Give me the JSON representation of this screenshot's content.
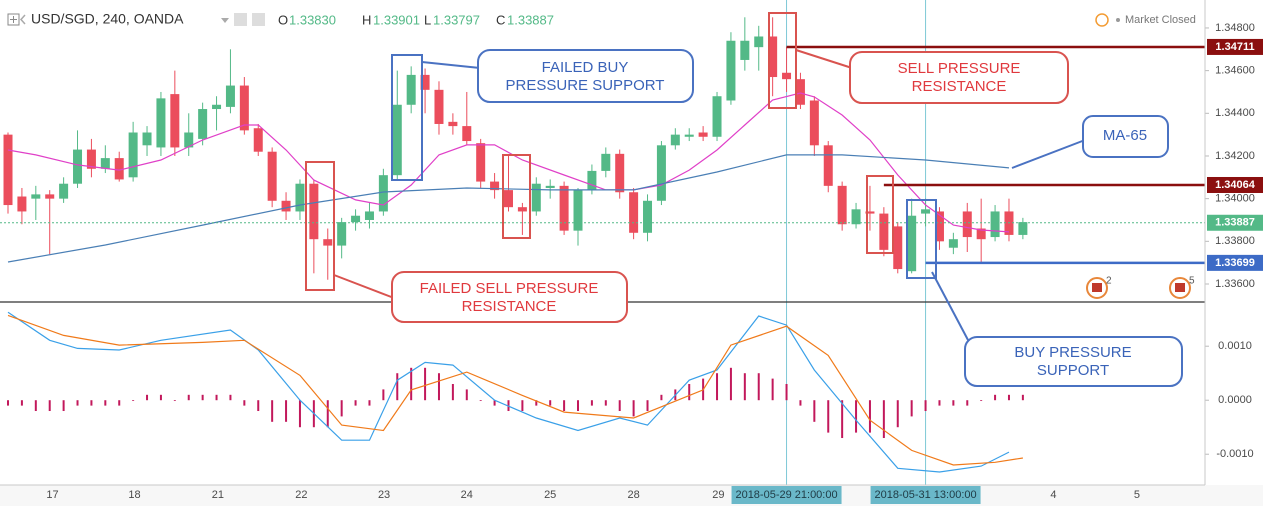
{
  "header": {
    "symbol": "USD/SGD, 240, OANDA",
    "ohlc": [
      [
        "O",
        "1.33830"
      ],
      [
        "H",
        "1.33901"
      ],
      [
        "L",
        "1.33797"
      ],
      [
        "C",
        "1.33887"
      ]
    ],
    "status": "Market Closed"
  },
  "annotations": [
    [
      "FAILED BUY",
      "PRESSURE SUPPORT"
    ],
    [
      "SELL PRESSURE",
      "RESISTANCE"
    ],
    [
      "MA-65"
    ],
    [
      "FAILED SELL PRESSURE",
      "RESISTANCE"
    ],
    [
      "BUY PRESSURE",
      "SUPPORT"
    ]
  ],
  "chart_data": [
    {
      "type": "candlestick",
      "up_color": "#53b987",
      "down_color": "#eb4d5c",
      "candles": {
        "open": [
          1.343,
          1.3401,
          1.34,
          1.3402,
          1.34,
          1.3407,
          1.3423,
          1.3414,
          1.3419,
          1.341,
          1.3425,
          1.3424,
          1.3449,
          1.3424,
          1.3428,
          1.3442,
          1.3443,
          1.3453,
          1.3433,
          1.3422,
          1.3399,
          1.3394,
          1.3407,
          1.3381,
          1.3378,
          1.3389,
          1.339,
          1.3394,
          1.3411,
          1.3444,
          1.3458,
          1.3451,
          1.3436,
          1.3434,
          1.3426,
          1.3408,
          1.3404,
          1.3396,
          1.3394,
          1.3405,
          1.3406,
          1.3385,
          1.3404,
          1.3413,
          1.3421,
          1.3403,
          1.3384,
          1.3399,
          1.3425,
          1.3429,
          1.3431,
          1.3429,
          1.3446,
          1.3465,
          1.3471,
          1.3476,
          1.3459,
          1.3456,
          1.3446,
          1.3425,
          1.3406,
          1.3388,
          1.3394,
          1.3393,
          1.3387,
          1.3366,
          1.3393,
          1.3394,
          1.3377,
          1.3394,
          1.3386,
          1.3382,
          1.3394,
          1.3383
        ],
        "high": [
          1.3431,
          1.3405,
          1.3406,
          1.3404,
          1.341,
          1.3432,
          1.3428,
          1.3425,
          1.3422,
          1.3436,
          1.3434,
          1.345,
          1.346,
          1.344,
          1.3445,
          1.3448,
          1.347,
          1.3457,
          1.3435,
          1.3424,
          1.3403,
          1.3409,
          1.3409,
          1.3386,
          1.3391,
          1.3395,
          1.3398,
          1.3414,
          1.346,
          1.3462,
          1.3461,
          1.3455,
          1.344,
          1.345,
          1.3428,
          1.3412,
          1.342,
          1.3398,
          1.341,
          1.3409,
          1.3408,
          1.3405,
          1.3416,
          1.3424,
          1.3423,
          1.3405,
          1.3402,
          1.3427,
          1.3433,
          1.3433,
          1.3434,
          1.345,
          1.3478,
          1.3485,
          1.3481,
          1.3485,
          1.3471,
          1.3459,
          1.3448,
          1.3427,
          1.3408,
          1.3398,
          1.3406,
          1.3396,
          1.3389,
          1.34,
          1.34,
          1.3396,
          1.3384,
          1.3398,
          1.34,
          1.3397,
          1.34,
          1.3391
        ],
        "low": [
          1.3393,
          1.3388,
          1.339,
          1.3374,
          1.3398,
          1.3405,
          1.341,
          1.3412,
          1.3408,
          1.3408,
          1.342,
          1.342,
          1.342,
          1.342,
          1.3425,
          1.3432,
          1.344,
          1.343,
          1.342,
          1.3396,
          1.339,
          1.339,
          1.3365,
          1.3362,
          1.3372,
          1.3385,
          1.3386,
          1.3392,
          1.3409,
          1.344,
          1.344,
          1.343,
          1.343,
          1.3425,
          1.3405,
          1.34,
          1.3394,
          1.3383,
          1.3392,
          1.34,
          1.3383,
          1.3378,
          1.3402,
          1.341,
          1.34,
          1.3381,
          1.338,
          1.3397,
          1.3423,
          1.3427,
          1.3427,
          1.3427,
          1.3444,
          1.346,
          1.346,
          1.3448,
          1.345,
          1.3442,
          1.342,
          1.3403,
          1.3385,
          1.3386,
          1.3385,
          1.3373,
          1.3365,
          1.3365,
          1.3387,
          1.3376,
          1.3374,
          1.3375,
          1.337,
          1.338,
          1.338,
          1.3381
        ],
        "close": [
          1.3397,
          1.3394,
          1.3402,
          1.34,
          1.3407,
          1.3423,
          1.3414,
          1.3419,
          1.3409,
          1.3431,
          1.3431,
          1.3447,
          1.3424,
          1.3431,
          1.3442,
          1.3444,
          1.3453,
          1.3432,
          1.3422,
          1.3399,
          1.3394,
          1.3407,
          1.3381,
          1.3378,
          1.3389,
          1.3392,
          1.3394,
          1.3411,
          1.3444,
          1.3458,
          1.3451,
          1.3435,
          1.3434,
          1.3427,
          1.3408,
          1.3404,
          1.3396,
          1.3394,
          1.3407,
          1.3406,
          1.3385,
          1.3404,
          1.3413,
          1.3421,
          1.3403,
          1.3384,
          1.3399,
          1.3425,
          1.343,
          1.343,
          1.3429,
          1.3448,
          1.3474,
          1.3474,
          1.3476,
          1.3457,
          1.3456,
          1.3444,
          1.3425,
          1.3406,
          1.3388,
          1.3395,
          1.3393,
          1.3376,
          1.3367,
          1.3392,
          1.3395,
          1.338,
          1.3381,
          1.3382,
          1.3381,
          1.3394,
          1.3383,
          1.3389
        ]
      },
      "series": [
        {
          "color": "#e040c8",
          "x": [
            0,
            2,
            5,
            8,
            11,
            14,
            17,
            18,
            20,
            22,
            25,
            27,
            29,
            31,
            33,
            35,
            37,
            40,
            43,
            45,
            47,
            49,
            51,
            53,
            55,
            57,
            58,
            60,
            62,
            64,
            66,
            68,
            70,
            72
          ],
          "values": [
            1.34228,
            1.34205,
            1.34158,
            1.34134,
            1.34181,
            1.34275,
            1.34345,
            1.34345,
            1.34228,
            1.34087,
            1.33994,
            1.3397,
            1.34064,
            1.34205,
            1.34252,
            1.34252,
            1.34181,
            1.34111,
            1.34041,
            1.34041,
            1.34064,
            1.34134,
            1.34228,
            1.34345,
            1.34462,
            1.34495,
            1.34477,
            1.34392,
            1.34275,
            1.34111,
            1.3397,
            1.33876,
            1.33853,
            1.33844
          ]
        },
        {
          "color": "#4a7fb5",
          "x": [
            0,
            7,
            14,
            21,
            27,
            33,
            39,
            45,
            51,
            56,
            60,
            66,
            72
          ],
          "values": [
            1.33703,
            1.33783,
            1.33876,
            1.3397,
            1.34031,
            1.3405,
            1.34041,
            1.34041,
            1.34125,
            1.34205,
            1.34205,
            1.34181,
            1.34144
          ]
        }
      ],
      "price_lines": [
        {
          "value": 1.34711,
          "color": "#8b0f0f",
          "from": 56
        },
        {
          "value": 1.34064,
          "color": "#8b0f0f",
          "from": 63
        },
        {
          "value": 1.33887,
          "color": "#53b987",
          "from": -0.576,
          "dotted": true
        },
        {
          "value": 1.33699,
          "color": "#3d6bc6",
          "from": 66
        }
      ],
      "event_counts": [
        2,
        5
      ],
      "crosshair": [
        {
          "x": 56,
          "label": "2018-05-29 21:00:00"
        },
        {
          "x": 66,
          "label": "2018-05-31 13:00:00"
        }
      ],
      "xlim": [
        -0.576,
        86.1
      ],
      "xticks": [
        {
          "value": 3.2,
          "label": "17"
        },
        {
          "value": 9.1,
          "label": "18"
        },
        {
          "value": 15.1,
          "label": "21"
        },
        {
          "value": 21.1,
          "label": "22"
        },
        {
          "value": 27.05,
          "label": "23"
        },
        {
          "value": 33.0,
          "label": "24"
        },
        {
          "value": 39.0,
          "label": "25"
        },
        {
          "value": 45.0,
          "label": "28"
        },
        {
          "value": 51.1,
          "label": "29"
        },
        {
          "value": 75.2,
          "label": "4"
        },
        {
          "value": 81.2,
          "label": "5"
        }
      ],
      "ylim": [
        1.33525,
        1.34931
      ],
      "yticks": [
        {
          "value": 1.348,
          "label": "1.34800"
        },
        {
          "value": 1.346,
          "label": "1.34600"
        },
        {
          "value": 1.344,
          "label": "1.34400"
        },
        {
          "value": 1.342,
          "label": "1.34200"
        },
        {
          "value": 1.34,
          "label": "1.34000"
        },
        {
          "value": 1.338,
          "label": "1.33800"
        },
        {
          "value": 1.336,
          "label": "1.33600"
        }
      ]
    },
    {
      "type": "macd",
      "hist_color": "#c2185b",
      "histogram": [
        -0.0001,
        -0.0001,
        -0.0002,
        -0.0002,
        -0.0002,
        -0.0001,
        -0.0001,
        -0.0001,
        -0.0001,
        0.0,
        0.0001,
        0.0001,
        0.0,
        0.0001,
        0.0001,
        0.0001,
        0.0001,
        -0.0001,
        -0.0002,
        -0.0004,
        -0.0004,
        -0.0005,
        -0.0005,
        -0.0005,
        -0.0003,
        -0.0001,
        -0.0001,
        0.0002,
        0.0005,
        0.0006,
        0.0006,
        0.0005,
        0.0003,
        0.0002,
        0.0,
        -0.0001,
        -0.0002,
        -0.0002,
        -0.0001,
        -0.0001,
        -0.0002,
        -0.0002,
        -0.0001,
        -0.0001,
        -0.0002,
        -0.0003,
        -0.0002,
        0.0001,
        0.0002,
        0.0003,
        0.0004,
        0.0005,
        0.0006,
        0.0005,
        0.0005,
        0.0004,
        0.0003,
        -0.0001,
        -0.0004,
        -0.0006,
        -0.0007,
        -0.0006,
        -0.0006,
        -0.0007,
        -0.0005,
        -0.0003,
        -0.0002,
        -0.0001,
        -0.0001,
        -0.0001,
        0.0,
        0.0001,
        0.0001,
        0.0001
      ],
      "series": [
        {
          "color": "#3aa0e8",
          "x": [
            0,
            3,
            5,
            8,
            11,
            16,
            18,
            21,
            24,
            26,
            28,
            30,
            32,
            35,
            38,
            41,
            44,
            46,
            49,
            51,
            54,
            56,
            58,
            61,
            64,
            67,
            70,
            72
          ],
          "values": [
            0.00163,
            0.00111,
            0.00096,
            0.00093,
            0.00111,
            0.0013,
            0.00093,
            0,
            -0.00074,
            -0.00074,
            0.00037,
            0.0007,
            0.00065,
            0,
            -0.00033,
            -0.00056,
            -0.00033,
            -0.00046,
            0.00037,
            0.00056,
            0.00156,
            0.00139,
            0.00056,
            -0.00037,
            -0.00126,
            -0.00133,
            -0.00122,
            -0.00096
          ]
        },
        {
          "color": "#f07a1a",
          "x": [
            0,
            4,
            8,
            14,
            17,
            21,
            24,
            27,
            29,
            33,
            37,
            40,
            45,
            50,
            52,
            56,
            59,
            62,
            65,
            68,
            71,
            73
          ],
          "values": [
            0.00157,
            0.0012,
            0.00102,
            0.00107,
            0.00111,
            0.00046,
            -0.00046,
            -0.00056,
            0.00019,
            0.00052,
            9e-05,
            -0.00022,
            -0.00033,
            0.00019,
            0.00102,
            0.00137,
            0.00083,
            -0.00037,
            -0.00093,
            -0.0012,
            -0.00115,
            -0.00107
          ]
        }
      ],
      "xlim": [
        -0.576,
        86.1
      ],
      "ylim": [
        -0.00157,
        0.0018
      ],
      "yticks": [
        {
          "value": 0.001,
          "label": "0.0010"
        },
        {
          "value": 0,
          "label": "0.0000"
        },
        {
          "value": -0.001,
          "label": "-0.0010"
        }
      ]
    }
  ]
}
